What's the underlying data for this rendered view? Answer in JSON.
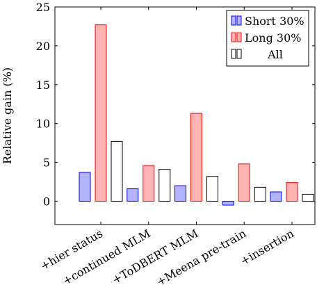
{
  "chart_data": {
    "type": "bar",
    "title": "",
    "xlabel": "",
    "ylabel": "Relative gain (%)",
    "categories": [
      "+hier status",
      "+continued MLM",
      "+ToDBERT MLM",
      "+Meena pre-train",
      "+insertion"
    ],
    "series": [
      {
        "name": "Short 30%",
        "values": [
          3.7,
          1.6,
          2.0,
          -0.5,
          1.2
        ],
        "fill": "#b3b3ff",
        "stroke": "#0000ff"
      },
      {
        "name": "Long 30%",
        "values": [
          22.7,
          4.6,
          11.3,
          4.8,
          2.4
        ],
        "fill": "#ffb3b3",
        "stroke": "#ff0000"
      },
      {
        "name": "All",
        "values": [
          7.7,
          4.1,
          3.2,
          1.8,
          0.9
        ],
        "fill": "#ffffff",
        "stroke": "#000000"
      }
    ],
    "ylim": [
      -3,
      25
    ],
    "yticks": [
      0,
      5,
      10,
      15,
      20,
      25
    ],
    "legend_position": "top-right",
    "grid": false
  }
}
